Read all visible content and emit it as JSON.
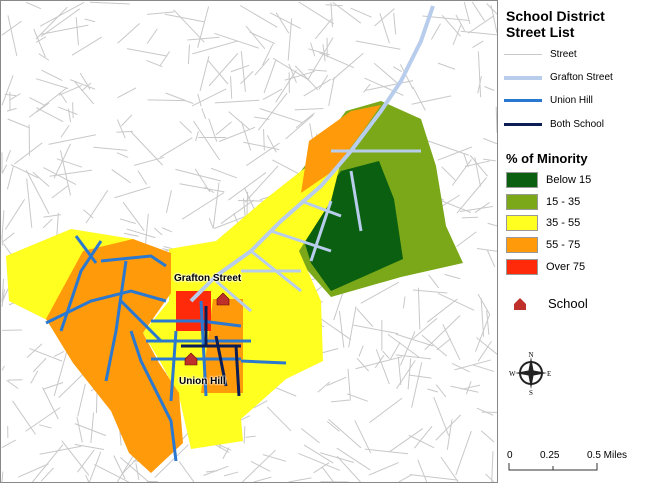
{
  "legend": {
    "title_line1": "School District",
    "title_line2": "Street List",
    "lines": [
      {
        "label": "Street",
        "color": "#c8c8c8"
      },
      {
        "label": "Grafton Street",
        "color": "#b8ccec"
      },
      {
        "label": "Union Hill",
        "color": "#2a78d0"
      },
      {
        "label": "Both School",
        "color": "#0b1e55"
      }
    ],
    "minority_title": "%  of Minority",
    "classes": [
      {
        "label": "Below 15",
        "color": "#0a6010"
      },
      {
        "label": "15 - 35",
        "color": "#7aa818"
      },
      {
        "label": "35 - 55",
        "color": "#ffff20"
      },
      {
        "label": "55 - 75",
        "color": "#ff9a0a"
      },
      {
        "label": "Over 75",
        "color": "#ff2a0a"
      }
    ],
    "school_label": "School"
  },
  "map": {
    "labels": [
      "Grafton Street",
      "Union Hill"
    ],
    "school_icon": "school-house-icon"
  },
  "compass": {
    "n": "N",
    "s": "S",
    "e": "E",
    "w": "W"
  },
  "scale_bar": {
    "ticks": [
      "0",
      "0.25",
      "0.5 Miles"
    ]
  }
}
